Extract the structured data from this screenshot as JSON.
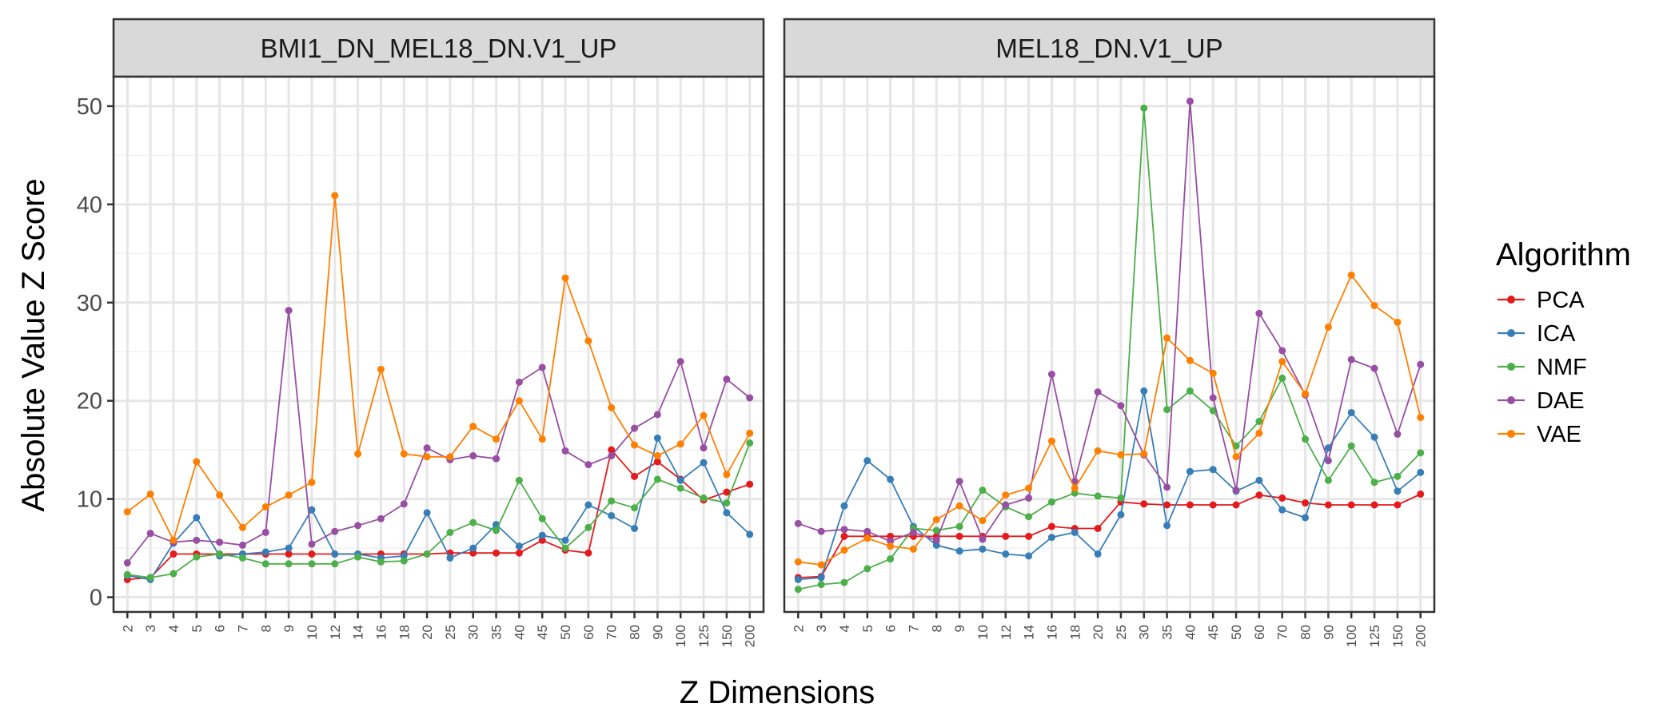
{
  "chart_data": {
    "type": "line",
    "xlabel": "Z Dimensions",
    "ylabel": "Absolute Value Z Score",
    "ylim": [
      -1.5,
      53
    ],
    "y_ticks": [
      0,
      10,
      20,
      30,
      40,
      50
    ],
    "categories": [
      "2",
      "3",
      "4",
      "5",
      "6",
      "7",
      "8",
      "9",
      "10",
      "12",
      "14",
      "16",
      "18",
      "20",
      "25",
      "30",
      "35",
      "40",
      "45",
      "50",
      "60",
      "70",
      "80",
      "90",
      "100",
      "125",
      "150",
      "200"
    ],
    "grid": true,
    "legend": {
      "title": "Algorithm",
      "position": "right",
      "entries": [
        "PCA",
        "ICA",
        "NMF",
        "DAE",
        "VAE"
      ]
    },
    "colors": {
      "PCA": "#E41A1C",
      "ICA": "#377EB8",
      "NMF": "#4DAF4A",
      "DAE": "#984EA3",
      "VAE": "#FF7F00"
    },
    "panels": [
      {
        "title": "BMI1_DN_MEL18_DN.V1_UP",
        "series": [
          {
            "name": "PCA",
            "values": [
              1.8,
              2.0,
              4.4,
              4.4,
              4.4,
              4.4,
              4.4,
              4.4,
              4.4,
              4.4,
              4.4,
              4.4,
              4.4,
              4.4,
              4.5,
              4.5,
              4.5,
              4.5,
              5.8,
              4.8,
              4.5,
              15.0,
              12.3,
              13.8,
              12.0,
              9.9,
              10.7,
              11.5
            ]
          },
          {
            "name": "ICA",
            "values": [
              2.2,
              1.8,
              5.5,
              8.1,
              4.2,
              4.4,
              4.6,
              5.0,
              8.9,
              4.4,
              4.4,
              4.0,
              4.2,
              8.6,
              4.0,
              5.0,
              7.4,
              5.2,
              6.3,
              5.8,
              9.4,
              8.3,
              7.0,
              16.2,
              11.9,
              13.7,
              8.6,
              6.4
            ]
          },
          {
            "name": "NMF",
            "values": [
              2.3,
              2.0,
              2.4,
              4.1,
              4.4,
              4.0,
              3.4,
              3.4,
              3.4,
              3.4,
              4.1,
              3.6,
              3.7,
              4.4,
              6.6,
              7.6,
              6.8,
              11.9,
              8.0,
              5.0,
              7.1,
              9.8,
              9.1,
              12.0,
              11.1,
              10.1,
              9.6,
              15.7
            ]
          },
          {
            "name": "DAE",
            "values": [
              3.5,
              6.5,
              5.6,
              5.8,
              5.6,
              5.3,
              6.6,
              29.2,
              5.4,
              6.7,
              7.3,
              8.0,
              9.5,
              15.2,
              14.0,
              14.4,
              14.1,
              21.9,
              23.4,
              14.9,
              13.5,
              14.4,
              17.2,
              18.6,
              24.0,
              15.2,
              22.2,
              20.3
            ]
          },
          {
            "name": "VAE",
            "values": [
              8.7,
              10.5,
              5.8,
              13.8,
              10.4,
              7.1,
              9.2,
              10.4,
              11.7,
              40.9,
              14.6,
              23.2,
              14.6,
              14.3,
              14.3,
              17.4,
              16.1,
              20.0,
              16.1,
              32.5,
              26.1,
              19.3,
              15.5,
              14.4,
              15.6,
              18.5,
              12.5,
              16.7
            ]
          }
        ]
      },
      {
        "title": "MEL18_DN.V1_UP",
        "series": [
          {
            "name": "PCA",
            "values": [
              2.0,
              2.1,
              6.2,
              6.2,
              6.2,
              6.2,
              6.2,
              6.2,
              6.2,
              6.2,
              6.2,
              7.2,
              7.0,
              7.0,
              9.7,
              9.5,
              9.4,
              9.4,
              9.4,
              9.4,
              10.4,
              10.1,
              9.6,
              9.4,
              9.4,
              9.4,
              9.4,
              10.5
            ]
          },
          {
            "name": "ICA",
            "values": [
              1.8,
              2.0,
              9.3,
              13.9,
              12.0,
              7.2,
              5.3,
              4.7,
              4.9,
              4.4,
              4.2,
              6.1,
              6.6,
              4.4,
              8.4,
              21.0,
              7.3,
              12.8,
              13.0,
              10.8,
              11.9,
              8.9,
              8.1,
              15.2,
              18.8,
              16.3,
              10.8,
              12.7
            ]
          },
          {
            "name": "NMF",
            "values": [
              0.8,
              1.3,
              1.5,
              2.9,
              3.9,
              7.0,
              6.8,
              7.2,
              10.9,
              9.2,
              8.2,
              9.7,
              10.6,
              10.3,
              10.1,
              49.8,
              19.1,
              21.0,
              19.0,
              15.4,
              17.9,
              22.3,
              16.1,
              11.9,
              15.4,
              11.7,
              12.3,
              14.7
            ]
          },
          {
            "name": "DAE",
            "values": [
              7.5,
              6.7,
              6.9,
              6.7,
              5.7,
              6.6,
              5.8,
              11.8,
              5.9,
              9.4,
              10.1,
              22.7,
              11.8,
              20.9,
              19.5,
              14.5,
              11.2,
              50.5,
              20.3,
              10.9,
              28.9,
              25.1,
              20.6,
              13.9,
              24.2,
              23.3,
              16.6,
              23.7
            ]
          },
          {
            "name": "VAE",
            "values": [
              3.6,
              3.3,
              4.8,
              6.0,
              5.2,
              4.9,
              7.9,
              9.3,
              7.8,
              10.4,
              11.1,
              15.9,
              11.1,
              14.9,
              14.5,
              14.6,
              26.4,
              24.1,
              22.8,
              14.3,
              16.7,
              24.0,
              20.7,
              27.5,
              32.8,
              29.7,
              28.0,
              18.3
            ]
          }
        ]
      }
    ]
  }
}
